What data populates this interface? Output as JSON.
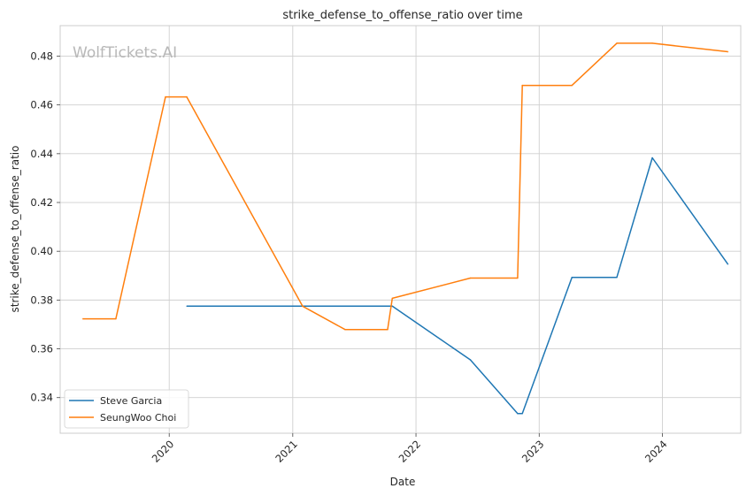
{
  "chart_data": {
    "type": "line",
    "title": "strike_defense_to_offense_ratio over time",
    "xlabel": "Date",
    "ylabel": "strike_defense_to_offense_ratio",
    "watermark": "WolfTickets.AI",
    "x_ticks": [
      "2020",
      "2021",
      "2022",
      "2023",
      "2024"
    ],
    "y_ticks": [
      "0.34",
      "0.36",
      "0.38",
      "0.40",
      "0.42",
      "0.44",
      "0.46",
      "0.48"
    ],
    "xlim": [
      "2019-02-12",
      "2024-08-20"
    ],
    "ylim": [
      0.3254,
      0.4925
    ],
    "grid": true,
    "legend_position": "lower-left",
    "series": [
      {
        "name": "Steve Garcia",
        "color": "#1f77b4",
        "points": [
          [
            "2020-02-22",
            0.3775
          ],
          [
            "2021-10-23",
            0.3775
          ],
          [
            "2022-06-11",
            0.3555
          ],
          [
            "2022-10-29",
            0.3335
          ],
          [
            "2022-11-12",
            0.3335
          ],
          [
            "2023-04-08",
            0.3893
          ],
          [
            "2023-08-19",
            0.3893
          ],
          [
            "2023-12-02",
            0.4383
          ],
          [
            "2024-07-13",
            0.3947
          ]
        ]
      },
      {
        "name": "SeungWoo Choi",
        "color": "#ff7f0e",
        "points": [
          [
            "2019-04-20",
            0.3723
          ],
          [
            "2019-07-27",
            0.3723
          ],
          [
            "2019-12-21",
            0.4633
          ],
          [
            "2020-02-22",
            0.4633
          ],
          [
            "2021-01-30",
            0.3775
          ],
          [
            "2021-06-05",
            0.3679
          ],
          [
            "2021-10-09",
            0.3679
          ],
          [
            "2021-10-23",
            0.3807
          ],
          [
            "2022-06-11",
            0.389
          ],
          [
            "2022-10-29",
            0.389
          ],
          [
            "2022-11-12",
            0.468
          ],
          [
            "2023-04-08",
            0.468
          ],
          [
            "2023-08-19",
            0.4853
          ],
          [
            "2023-12-02",
            0.4853
          ],
          [
            "2024-07-13",
            0.4818
          ]
        ]
      }
    ]
  }
}
